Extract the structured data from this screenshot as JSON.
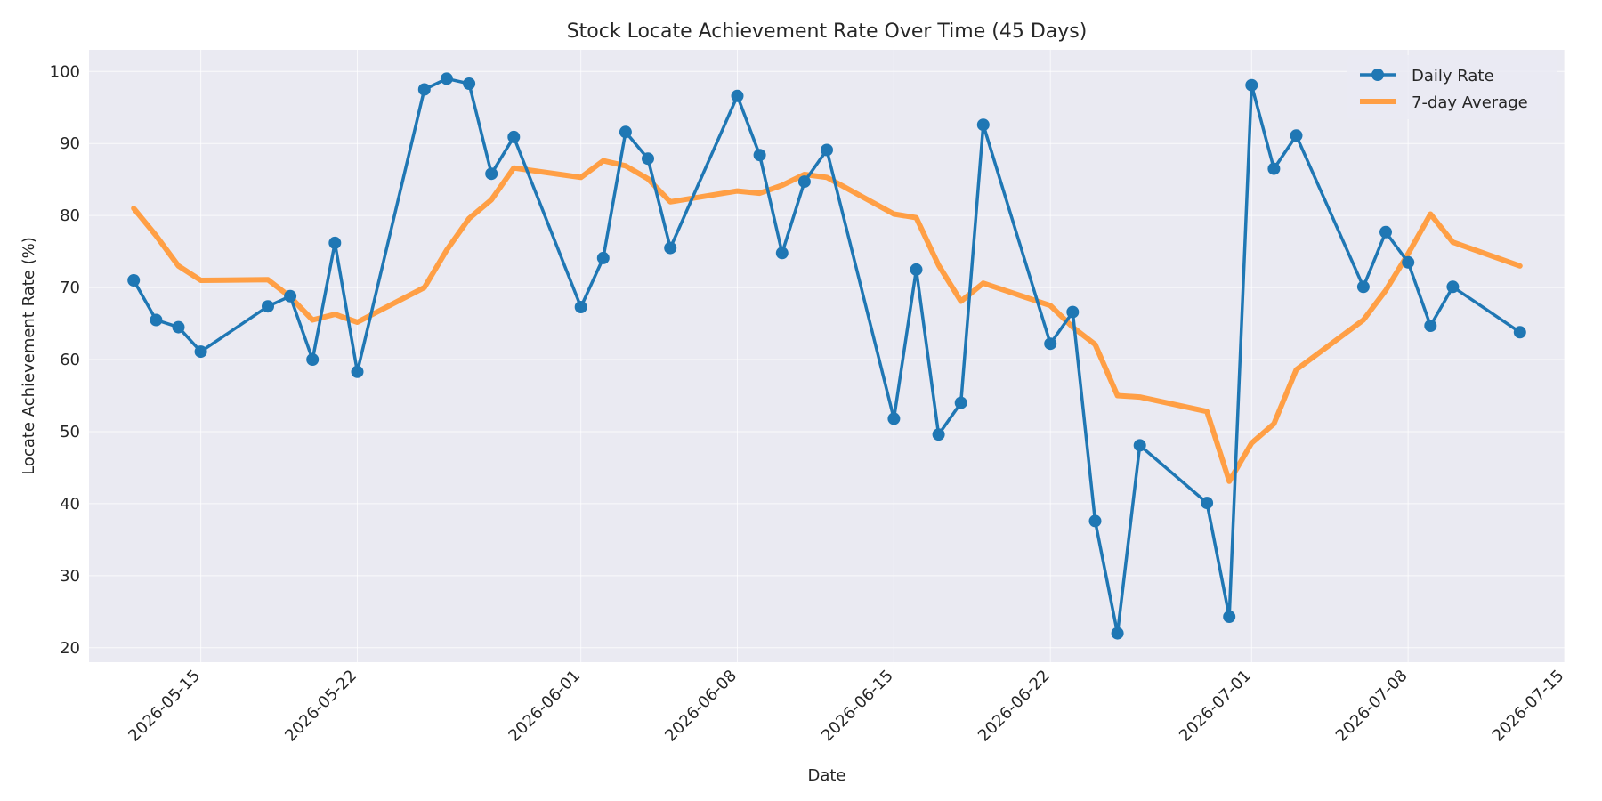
{
  "chart_data": {
    "type": "line",
    "title": "Stock Locate Achievement Rate Over Time (45 Days)",
    "xlabel": "Date",
    "ylabel": "Locate Achievement Rate (%)",
    "x_tick_labels": [
      "2026-05-15",
      "2026-05-22",
      "2026-06-01",
      "2026-06-08",
      "2026-06-15",
      "2026-06-22",
      "2026-07-01",
      "2026-07-08",
      "2026-07-15"
    ],
    "y_ticks": [
      20,
      30,
      40,
      50,
      60,
      70,
      80,
      90,
      100
    ],
    "xlim": [
      "2026-05-10",
      "2026-07-15"
    ],
    "ylim": [
      18,
      103
    ],
    "grid": true,
    "legend_position": "top-right",
    "colors": {
      "daily": "#1f77b4",
      "average": "#ff9f45",
      "plot_bg": "#eaeaf2"
    },
    "series": [
      {
        "name": "Daily Rate",
        "style": "line-markers",
        "points": [
          [
            "2026-05-12",
            71.0
          ],
          [
            "2026-05-13",
            65.5
          ],
          [
            "2026-05-14",
            64.5
          ],
          [
            "2026-05-15",
            61.1
          ],
          [
            "2026-05-18",
            67.4
          ],
          [
            "2026-05-19",
            68.8
          ],
          [
            "2026-05-20",
            60.0
          ],
          [
            "2026-05-21",
            76.2
          ],
          [
            "2026-05-22",
            58.3
          ],
          [
            "2026-05-25",
            97.5
          ],
          [
            "2026-05-26",
            99.0
          ],
          [
            "2026-05-27",
            98.3
          ],
          [
            "2026-05-28",
            85.8
          ],
          [
            "2026-05-29",
            90.9
          ],
          [
            "2026-06-01",
            67.3
          ],
          [
            "2026-06-02",
            74.1
          ],
          [
            "2026-06-03",
            91.6
          ],
          [
            "2026-06-04",
            87.9
          ],
          [
            "2026-06-05",
            75.5
          ],
          [
            "2026-06-08",
            96.6
          ],
          [
            "2026-06-09",
            88.4
          ],
          [
            "2026-06-10",
            74.8
          ],
          [
            "2026-06-11",
            84.7
          ],
          [
            "2026-06-12",
            89.1
          ],
          [
            "2026-06-15",
            51.8
          ],
          [
            "2026-06-16",
            72.5
          ],
          [
            "2026-06-17",
            49.6
          ],
          [
            "2026-06-18",
            54.0
          ],
          [
            "2026-06-19",
            92.6
          ],
          [
            "2026-06-22",
            62.2
          ],
          [
            "2026-06-23",
            66.6
          ],
          [
            "2026-06-24",
            37.6
          ],
          [
            "2026-06-25",
            22.0
          ],
          [
            "2026-06-26",
            48.1
          ],
          [
            "2026-06-29",
            40.1
          ],
          [
            "2026-06-30",
            24.3
          ],
          [
            "2026-07-01",
            98.1
          ],
          [
            "2026-07-02",
            86.5
          ],
          [
            "2026-07-03",
            91.1
          ],
          [
            "2026-07-06",
            70.1
          ],
          [
            "2026-07-07",
            77.7
          ],
          [
            "2026-07-08",
            73.5
          ],
          [
            "2026-07-09",
            64.7
          ],
          [
            "2026-07-10",
            70.1
          ],
          [
            "2026-07-13",
            63.8
          ]
        ]
      },
      {
        "name": "7-day Average",
        "style": "line",
        "points": [
          [
            "2026-05-12",
            81.0
          ],
          [
            "2026-05-13",
            77.2
          ],
          [
            "2026-05-14",
            73.0
          ],
          [
            "2026-05-15",
            71.0
          ],
          [
            "2026-05-18",
            71.1
          ],
          [
            "2026-05-19",
            68.7
          ],
          [
            "2026-05-20",
            65.5
          ],
          [
            "2026-05-21",
            66.3
          ],
          [
            "2026-05-22",
            65.2
          ],
          [
            "2026-05-25",
            70.0
          ],
          [
            "2026-05-26",
            75.2
          ],
          [
            "2026-05-27",
            79.6
          ],
          [
            "2026-05-28",
            82.2
          ],
          [
            "2026-05-29",
            86.6
          ],
          [
            "2026-06-01",
            85.3
          ],
          [
            "2026-06-02",
            87.6
          ],
          [
            "2026-06-03",
            86.9
          ],
          [
            "2026-06-04",
            85.1
          ],
          [
            "2026-06-05",
            81.9
          ],
          [
            "2026-06-08",
            83.4
          ],
          [
            "2026-06-09",
            83.1
          ],
          [
            "2026-06-10",
            84.2
          ],
          [
            "2026-06-11",
            85.7
          ],
          [
            "2026-06-12",
            85.3
          ],
          [
            "2026-06-15",
            80.2
          ],
          [
            "2026-06-16",
            79.7
          ],
          [
            "2026-06-17",
            73.1
          ],
          [
            "2026-06-18",
            68.1
          ],
          [
            "2026-06-19",
            70.6
          ],
          [
            "2026-06-22",
            67.5
          ],
          [
            "2026-06-23",
            64.5
          ],
          [
            "2026-06-24",
            62.1
          ],
          [
            "2026-06-25",
            55.0
          ],
          [
            "2026-06-26",
            54.8
          ],
          [
            "2026-06-29",
            52.8
          ],
          [
            "2026-06-30",
            43.1
          ],
          [
            "2026-07-01",
            48.4
          ],
          [
            "2026-07-02",
            51.1
          ],
          [
            "2026-07-03",
            58.6
          ],
          [
            "2026-07-06",
            65.5
          ],
          [
            "2026-07-07",
            69.6
          ],
          [
            "2026-07-08",
            74.7
          ],
          [
            "2026-07-09",
            80.2
          ],
          [
            "2026-07-10",
            76.3
          ],
          [
            "2026-07-13",
            73.0
          ]
        ]
      }
    ]
  }
}
